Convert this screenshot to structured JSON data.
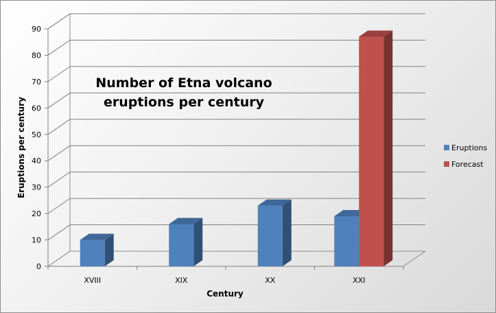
{
  "chart_data": {
    "type": "bar",
    "title_lines": [
      "Number of Etna volcano",
      "eruptions per century"
    ],
    "xlabel": "Century",
    "ylabel": "Eruptions per century",
    "categories": [
      "XVIII",
      "XIX",
      "XX",
      "XXI"
    ],
    "yticks": [
      0,
      10,
      20,
      30,
      40,
      50,
      60,
      70,
      80,
      90
    ],
    "ylim": [
      0,
      90
    ],
    "grid": true,
    "legend_position": "right",
    "series": [
      {
        "name": "Eruptions",
        "color": "#4f81bd",
        "values": [
          10,
          16,
          23,
          19
        ]
      },
      {
        "name": "Forecast",
        "color": "#c0504d",
        "values": [
          null,
          null,
          null,
          87
        ]
      }
    ]
  }
}
